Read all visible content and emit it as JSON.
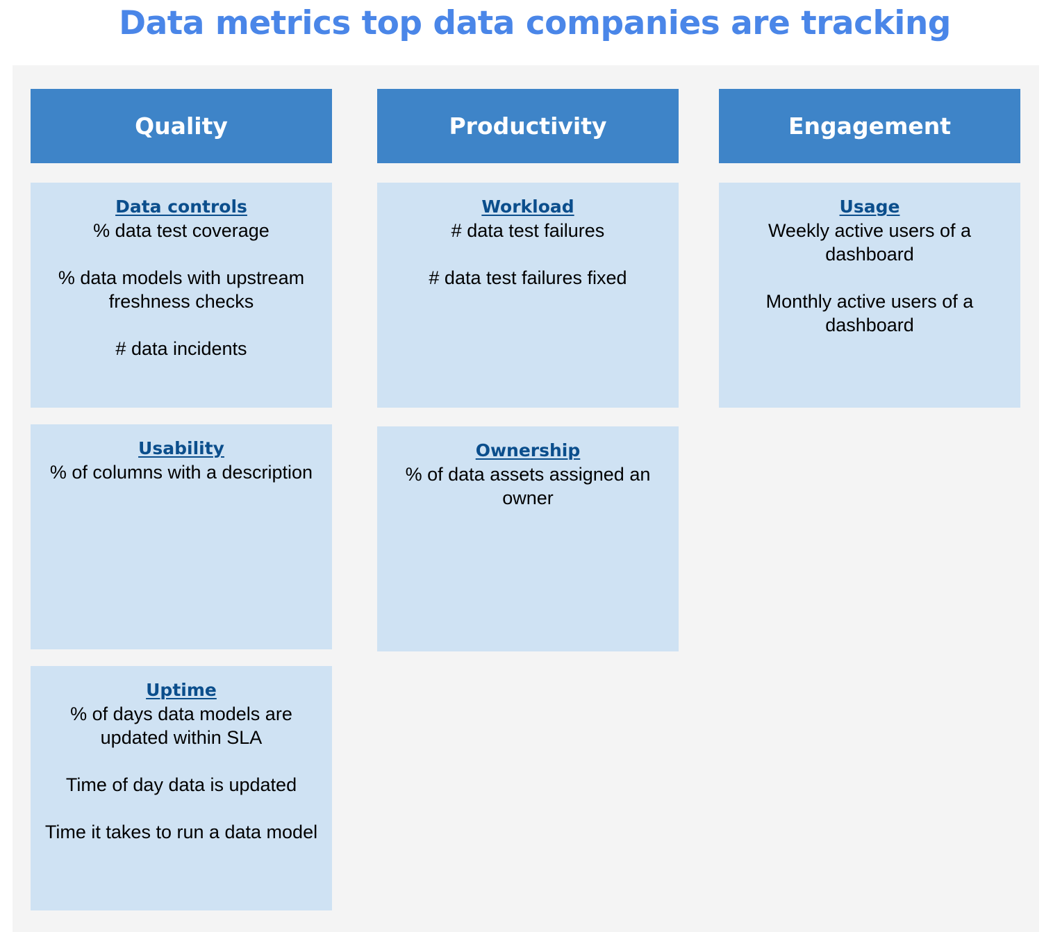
{
  "title": "Data metrics top data companies are tracking",
  "columns": [
    {
      "header": "Quality",
      "cards": [
        {
          "title": "Data controls",
          "metrics": [
            "% data test coverage",
            "% data models with upstream freshness checks",
            "# data incidents"
          ]
        },
        {
          "title": "Usability",
          "metrics": [
            "% of columns with a description"
          ]
        },
        {
          "title": "Uptime",
          "metrics": [
            "% of days data models are updated within SLA",
            "Time of day data is updated",
            "Time it takes to run a data model"
          ]
        }
      ]
    },
    {
      "header": "Productivity",
      "cards": [
        {
          "title": "Workload",
          "metrics": [
            "# data test failures",
            "# data test failures fixed"
          ]
        },
        {
          "title": "Ownership",
          "metrics": [
            "% of data assets assigned an owner"
          ]
        }
      ]
    },
    {
      "header": "Engagement",
      "cards": [
        {
          "title": "Usage",
          "metrics": [
            "Weekly active users of a dashboard",
            "Monthly active users of a dashboard"
          ]
        }
      ]
    }
  ]
}
